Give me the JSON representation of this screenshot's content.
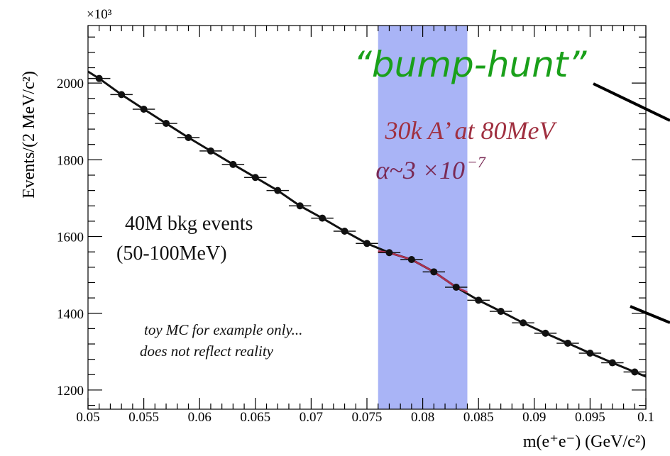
{
  "chart_data": {
    "type": "scatter",
    "x_range": [
      0.05,
      0.1
    ],
    "ylim": [
      1150,
      2150
    ],
    "y_multiplier_label": "×10³",
    "ylabel": "Events/(2 MeV/c²)",
    "xlabel": "m(e⁺e⁻) (GeV/c²)",
    "x_ticks": [
      0.05,
      0.055,
      0.06,
      0.065,
      0.07,
      0.075,
      0.08,
      0.085,
      0.09,
      0.095,
      0.1
    ],
    "x_tick_labels": [
      "0.05",
      "0.055",
      "0.06",
      "0.065",
      "0.07",
      "0.075",
      "0.08",
      "0.085",
      "0.09",
      "0.095",
      "0.1"
    ],
    "y_ticks": [
      1200,
      1400,
      1600,
      1800,
      2000
    ],
    "y_tick_labels": [
      "1200",
      "1400",
      "1600",
      "1800",
      "2000"
    ],
    "series": [
      {
        "x": [
          0.051,
          0.053,
          0.055,
          0.057,
          0.059,
          0.061,
          0.063,
          0.065,
          0.067,
          0.069,
          0.071,
          0.073,
          0.075,
          0.077,
          0.079,
          0.081,
          0.083,
          0.085,
          0.087,
          0.089,
          0.091,
          0.093,
          0.095,
          0.097,
          0.099
        ],
        "y": [
          2012,
          1970,
          1932,
          1895,
          1858,
          1823,
          1788,
          1754,
          1720,
          1680,
          1648,
          1614,
          1582,
          1558,
          1540,
          1508,
          1468,
          1434,
          1405,
          1375,
          1348,
          1322,
          1296,
          1271,
          1247
        ]
      }
    ],
    "signal_window": [
      0.076,
      0.084
    ],
    "annotations": {
      "bump_hunt": "“bump-hunt”",
      "signal_line1": "30k A’ at 80MeV",
      "signal_line2": "α~3 ×10",
      "signal_exponent": "−7",
      "bkg_line1": "40M bkg events",
      "bkg_line2": "(50-100MeV)",
      "toy_line1": "toy MC for example only...",
      "toy_line2": "does not reflect  reality"
    },
    "colors": {
      "band": "#9aa7f5",
      "bump_hunt": "#1aa01a",
      "signal_text": "#a03040",
      "signal_fit": "#b03050",
      "data": "#111111"
    }
  }
}
